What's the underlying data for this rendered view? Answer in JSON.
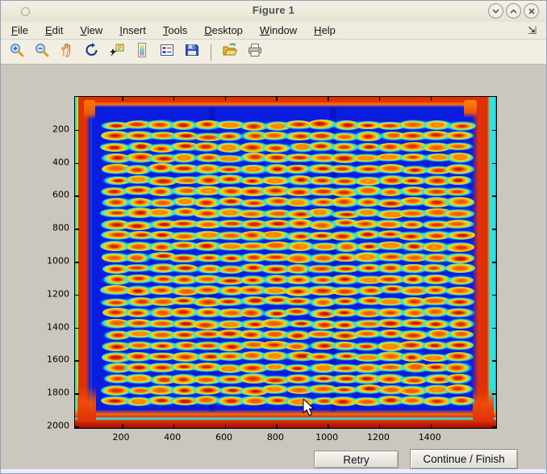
{
  "window": {
    "title": "Figure 1",
    "controls": [
      {
        "name": "shade-button",
        "icon": "chevron-down-icon"
      },
      {
        "name": "maximize-button",
        "icon": "chevron-up-icon"
      },
      {
        "name": "close-button",
        "icon": "close-icon"
      }
    ]
  },
  "menu_bar": {
    "items": [
      {
        "label": "File",
        "mnemonic_index": 0
      },
      {
        "label": "Edit",
        "mnemonic_index": 0
      },
      {
        "label": "View",
        "mnemonic_index": 0
      },
      {
        "label": "Insert",
        "mnemonic_index": 0
      },
      {
        "label": "Tools",
        "mnemonic_index": 0
      },
      {
        "label": "Desktop",
        "mnemonic_index": 0
      },
      {
        "label": "Window",
        "mnemonic_index": 0
      },
      {
        "label": "Help",
        "mnemonic_index": 0
      }
    ],
    "dock_icon": "dock-arrow-icon",
    "dock_glyph": "⇲"
  },
  "toolbar": {
    "buttons": [
      {
        "icon": "zoom-in-icon"
      },
      {
        "icon": "zoom-out-icon"
      },
      {
        "icon": "pan-hand-icon"
      },
      {
        "icon": "rotate-3d-icon"
      },
      {
        "icon": "data-cursor-icon"
      },
      {
        "icon": "colorbar-icon"
      },
      {
        "icon": "legend-icon"
      },
      {
        "icon": "save-icon"
      },
      {
        "icon": "separator"
      },
      {
        "icon": "open-folder-icon"
      },
      {
        "icon": "print-icon"
      }
    ]
  },
  "chart_data": {
    "type": "heatmap",
    "title": "",
    "xlabel": "",
    "ylabel": "",
    "description": "Microarray slide scan shown in jet colormap: deep blue background, saturated red slide-edge frame, and a regular grid of hybridization spots with red/orange cores, yellow rings and cyan halos. Y axis increases downward (image coordinates).",
    "colormap": "jet",
    "x_range": [
      18,
      1655
    ],
    "y_range": [
      0,
      2010
    ],
    "x_ticks": [
      200,
      400,
      600,
      800,
      1000,
      1200,
      1400
    ],
    "y_ticks": [
      200,
      400,
      600,
      800,
      1000,
      1200,
      1400,
      1600,
      1800,
      2000
    ],
    "y_axis_reversed": true,
    "grid_on": false,
    "box_on": true,
    "tick_direction": "in",
    "spot_grid": {
      "rows": 26,
      "cols": 16,
      "x_start": 178,
      "x_pitch": 89,
      "y_start": 171,
      "y_pitch": 67,
      "spot_width_units": 54,
      "spot_height_units": 54
    },
    "colors": {
      "background_blue": "#0a1ce0",
      "edge_red": "#e03008",
      "halo_cyan": "#2fe3d8",
      "ring_yellow": "#ffd900",
      "core_orange": "#ff7b00",
      "core_red": "#d92b07"
    }
  },
  "action_bar": {
    "retry_label": "Retry",
    "continue_label": "Continue / Finish"
  }
}
